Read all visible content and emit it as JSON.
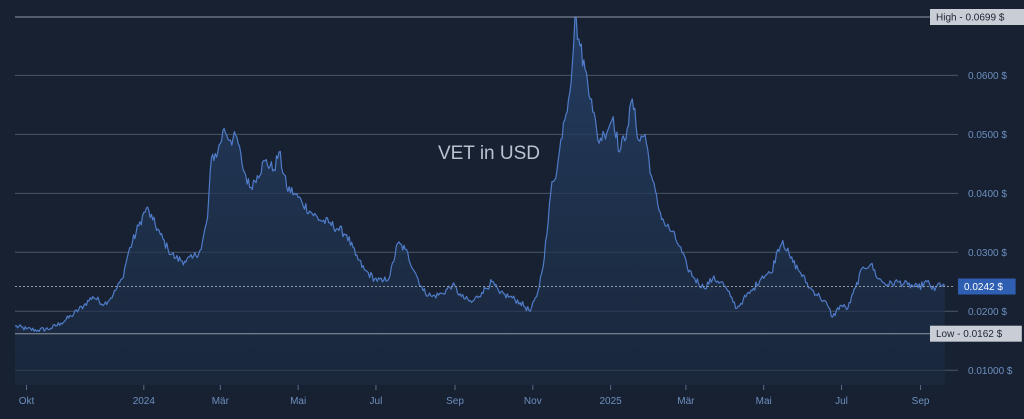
{
  "chart_data": {
    "type": "area",
    "title": "VET in USD",
    "xlabel": "",
    "ylabel": "",
    "ylim": [
      0.0075,
      0.0699
    ],
    "y_ticks": [
      "0.01000 $",
      "0.0200 $",
      "0.0300 $",
      "0.0400 $",
      "0.0500 $",
      "0.0600 $"
    ],
    "y_tick_values": [
      0.01,
      0.02,
      0.03,
      0.04,
      0.05,
      0.06
    ],
    "x_ticks": [
      {
        "label": "Okt",
        "date": "2023-10-01"
      },
      {
        "label": "2024",
        "date": "2024-01-01"
      },
      {
        "label": "Mär",
        "date": "2024-03-01"
      },
      {
        "label": "Mai",
        "date": "2024-05-01"
      },
      {
        "label": "Jul",
        "date": "2024-07-01"
      },
      {
        "label": "Sep",
        "date": "2024-09-01"
      },
      {
        "label": "Nov",
        "date": "2024-11-01"
      },
      {
        "label": "2025",
        "date": "2025-01-01"
      },
      {
        "label": "Mär",
        "date": "2025-03-01"
      },
      {
        "label": "Mai",
        "date": "2025-05-01"
      },
      {
        "label": "Jul",
        "date": "2025-07-01"
      },
      {
        "label": "Sep",
        "date": "2025-09-01"
      }
    ],
    "high": {
      "label": "High - 0.0699 $",
      "value": 0.0699
    },
    "low": {
      "label": "Low - 0.0162 $",
      "value": 0.0162
    },
    "current": {
      "label": "0.0242 $",
      "value": 0.0242
    },
    "grid": true,
    "legend": "none",
    "colors": {
      "line": "#4f7bc8",
      "fill": "#22395c",
      "grid": "#4a5566",
      "background": "#172131",
      "tick_text": "#6d8fc0",
      "current_tag": "#2f5fb3"
    },
    "series": [
      {
        "points": [
          [
            "2023-09-22",
            0.0175
          ],
          [
            "2023-10-01",
            0.017
          ],
          [
            "2023-10-10",
            0.0168
          ],
          [
            "2023-10-20",
            0.0171
          ],
          [
            "2023-10-28",
            0.018
          ],
          [
            "2023-11-05",
            0.0192
          ],
          [
            "2023-11-15",
            0.021
          ],
          [
            "2023-11-22",
            0.0225
          ],
          [
            "2023-12-01",
            0.0212
          ],
          [
            "2023-12-08",
            0.0228
          ],
          [
            "2023-12-15",
            0.0255
          ],
          [
            "2023-12-20",
            0.03
          ],
          [
            "2023-12-28",
            0.0345
          ],
          [
            "2024-01-03",
            0.0375
          ],
          [
            "2024-01-08",
            0.0355
          ],
          [
            "2024-01-14",
            0.033
          ],
          [
            "2024-01-20",
            0.0305
          ],
          [
            "2024-01-26",
            0.029
          ],
          [
            "2024-02-02",
            0.0285
          ],
          [
            "2024-02-08",
            0.029
          ],
          [
            "2024-02-15",
            0.0305
          ],
          [
            "2024-02-20",
            0.036
          ],
          [
            "2024-02-23",
            0.046
          ],
          [
            "2024-02-28",
            0.047
          ],
          [
            "2024-03-04",
            0.051
          ],
          [
            "2024-03-09",
            0.049
          ],
          [
            "2024-03-14",
            0.0495
          ],
          [
            "2024-03-18",
            0.045
          ],
          [
            "2024-03-24",
            0.041
          ],
          [
            "2024-03-30",
            0.043
          ],
          [
            "2024-04-05",
            0.0455
          ],
          [
            "2024-04-12",
            0.044
          ],
          [
            "2024-04-16",
            0.047
          ],
          [
            "2024-04-22",
            0.041
          ],
          [
            "2024-04-28",
            0.04
          ],
          [
            "2024-05-04",
            0.0385
          ],
          [
            "2024-05-10",
            0.037
          ],
          [
            "2024-05-18",
            0.0355
          ],
          [
            "2024-05-25",
            0.035
          ],
          [
            "2024-06-01",
            0.034
          ],
          [
            "2024-06-08",
            0.033
          ],
          [
            "2024-06-15",
            0.0295
          ],
          [
            "2024-06-22",
            0.027
          ],
          [
            "2024-06-30",
            0.0255
          ],
          [
            "2024-07-06",
            0.025
          ],
          [
            "2024-07-12",
            0.026
          ],
          [
            "2024-07-18",
            0.0315
          ],
          [
            "2024-07-24",
            0.0305
          ],
          [
            "2024-08-01",
            0.0265
          ],
          [
            "2024-08-07",
            0.0235
          ],
          [
            "2024-08-14",
            0.0225
          ],
          [
            "2024-08-22",
            0.023
          ],
          [
            "2024-08-30",
            0.0245
          ],
          [
            "2024-09-06",
            0.0225
          ],
          [
            "2024-09-14",
            0.0215
          ],
          [
            "2024-09-22",
            0.0232
          ],
          [
            "2024-09-30",
            0.025
          ],
          [
            "2024-10-06",
            0.023
          ],
          [
            "2024-10-14",
            0.0225
          ],
          [
            "2024-10-22",
            0.0215
          ],
          [
            "2024-10-30",
            0.02
          ],
          [
            "2024-11-04",
            0.0225
          ],
          [
            "2024-11-08",
            0.0265
          ],
          [
            "2024-11-12",
            0.033
          ],
          [
            "2024-11-16",
            0.042
          ],
          [
            "2024-11-20",
            0.044
          ],
          [
            "2024-11-25",
            0.052
          ],
          [
            "2024-11-29",
            0.056
          ],
          [
            "2024-12-02",
            0.062
          ],
          [
            "2024-12-04",
            0.0699
          ],
          [
            "2024-12-08",
            0.065
          ],
          [
            "2024-12-12",
            0.061
          ],
          [
            "2024-12-17",
            0.056
          ],
          [
            "2024-12-22",
            0.049
          ],
          [
            "2024-12-27",
            0.05
          ],
          [
            "2025-01-03",
            0.053
          ],
          [
            "2025-01-08",
            0.047
          ],
          [
            "2025-01-14",
            0.051
          ],
          [
            "2025-01-18",
            0.056
          ],
          [
            "2025-01-23",
            0.049
          ],
          [
            "2025-01-28",
            0.05
          ],
          [
            "2025-02-02",
            0.043
          ],
          [
            "2025-02-07",
            0.038
          ],
          [
            "2025-02-12",
            0.035
          ],
          [
            "2025-02-18",
            0.0335
          ],
          [
            "2025-02-24",
            0.031
          ],
          [
            "2025-03-02",
            0.0275
          ],
          [
            "2025-03-08",
            0.0255
          ],
          [
            "2025-03-15",
            0.024
          ],
          [
            "2025-03-22",
            0.0255
          ],
          [
            "2025-03-29",
            0.025
          ],
          [
            "2025-04-05",
            0.0225
          ],
          [
            "2025-04-10",
            0.0205
          ],
          [
            "2025-04-15",
            0.022
          ],
          [
            "2025-04-22",
            0.0235
          ],
          [
            "2025-04-30",
            0.026
          ],
          [
            "2025-05-07",
            0.0265
          ],
          [
            "2025-05-12",
            0.0305
          ],
          [
            "2025-05-16",
            0.032
          ],
          [
            "2025-05-22",
            0.029
          ],
          [
            "2025-05-30",
            0.0265
          ],
          [
            "2025-06-06",
            0.024
          ],
          [
            "2025-06-14",
            0.0225
          ],
          [
            "2025-06-20",
            0.021
          ],
          [
            "2025-06-24",
            0.019
          ],
          [
            "2025-06-30",
            0.021
          ],
          [
            "2025-07-06",
            0.0205
          ],
          [
            "2025-07-12",
            0.024
          ],
          [
            "2025-07-18",
            0.0275
          ],
          [
            "2025-07-24",
            0.028
          ],
          [
            "2025-07-30",
            0.0255
          ],
          [
            "2025-08-06",
            0.0245
          ],
          [
            "2025-08-14",
            0.025
          ],
          [
            "2025-08-22",
            0.0245
          ],
          [
            "2025-08-30",
            0.024
          ],
          [
            "2025-09-06",
            0.025
          ],
          [
            "2025-09-12",
            0.0235
          ],
          [
            "2025-09-16",
            0.0248
          ],
          [
            "2025-09-20",
            0.0242
          ]
        ]
      }
    ]
  }
}
